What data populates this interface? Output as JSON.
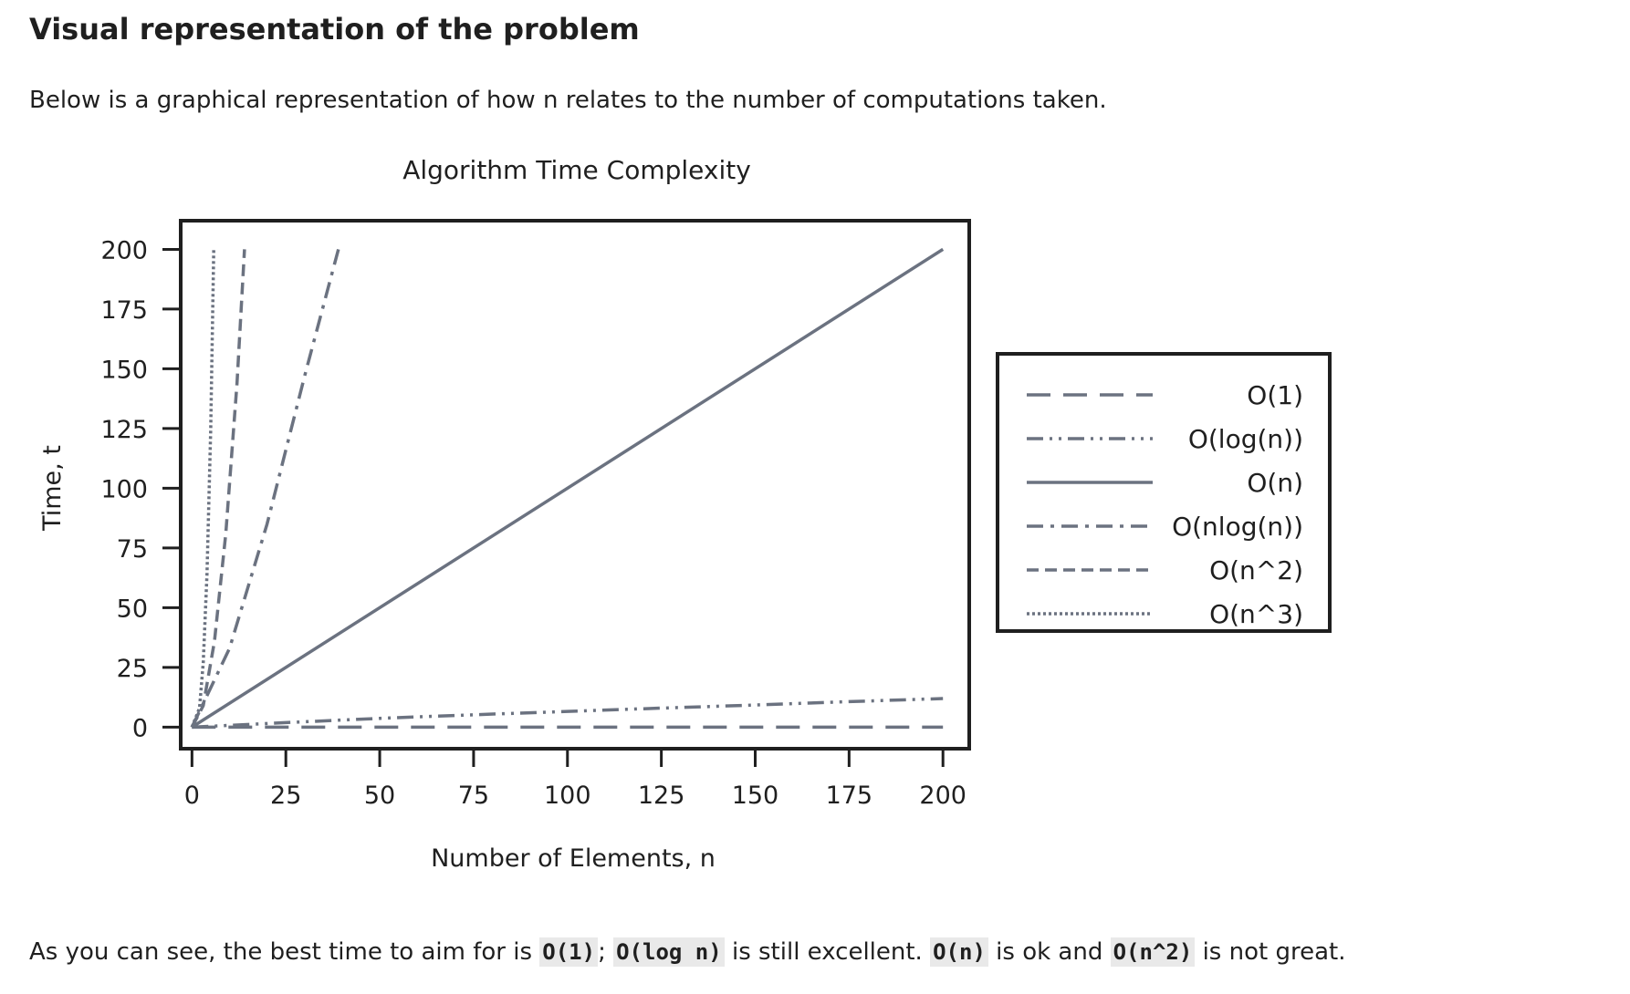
{
  "section": {
    "heading": "Visual representation of the problem",
    "intro": "Below is a graphical representation of how n relates to the number of computations taken."
  },
  "chart_data": {
    "type": "line",
    "title": "Algorithm Time Complexity",
    "xlabel": "Number of Elements, n",
    "ylabel": "Time, t",
    "xlim": [
      -3,
      207
    ],
    "ylim": [
      -9,
      212
    ],
    "xticks": [
      0,
      25,
      50,
      75,
      100,
      125,
      150,
      175,
      200
    ],
    "yticks": [
      0,
      25,
      50,
      75,
      100,
      125,
      150,
      175,
      200
    ],
    "ytick_labels": [
      "0",
      "25",
      "50",
      "75",
      "100",
      "125",
      "150",
      "175",
      "200"
    ],
    "xtick_labels": [
      "0",
      "25",
      "50",
      "75",
      "100",
      "125",
      "150",
      "175",
      "200"
    ],
    "grid": false,
    "legend_position": "outside-right",
    "line_color": "#6b7280",
    "series": [
      {
        "name": "O(1)",
        "dash": "long-dash",
        "x": [
          0,
          200
        ],
        "y": [
          0,
          0
        ]
      },
      {
        "name": "O(log(n))",
        "dash": "dash-dot-dot",
        "x": [
          0,
          25,
          50,
          75,
          100,
          125,
          150,
          175,
          200
        ],
        "y": [
          0,
          1.9,
          3.7,
          5.2,
          6.6,
          8.0,
          9.3,
          10.7,
          12.0
        ]
      },
      {
        "name": "O(n)",
        "dash": "solid",
        "x": [
          0,
          200
        ],
        "y": [
          0,
          200
        ]
      },
      {
        "name": "O(nlog(n))",
        "dash": "dash-dot",
        "x": [
          0,
          10,
          20,
          30,
          39
        ],
        "y": [
          0,
          33,
          85,
          147,
          200
        ]
      },
      {
        "name": "O(n^2)",
        "dash": "dashed",
        "x": [
          0,
          3,
          6,
          9,
          12,
          14
        ],
        "y": [
          0,
          9,
          36,
          81,
          144,
          200
        ]
      },
      {
        "name": "O(n^3)",
        "dash": "dotted",
        "x": [
          0,
          2,
          3,
          4,
          5,
          5.8
        ],
        "y": [
          0,
          8,
          27,
          64,
          125,
          200
        ]
      }
    ]
  },
  "conclusion": {
    "before": "As you can see, the best time to aim for is ",
    "code1": "O(1)",
    "sep1": "; ",
    "code2": "O(log n)",
    "mid1": " is still excellent. ",
    "code3": "O(n)",
    "mid2": " is ok and ",
    "code4": "O(n^2)",
    "after": " is not great."
  }
}
